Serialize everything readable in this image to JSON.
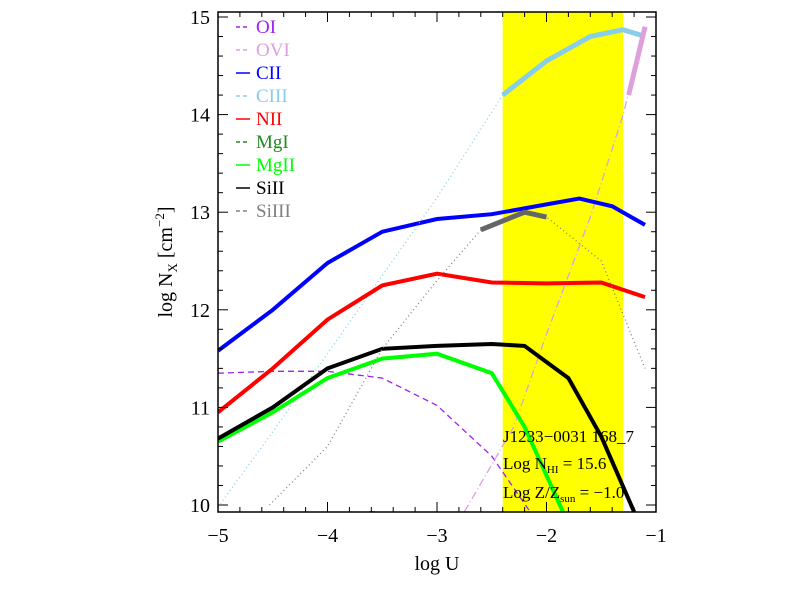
{
  "chart_data": {
    "type": "line",
    "xlabel": "log U",
    "ylabel": "log N_X [cm^-2]",
    "xlim": [
      -5,
      -1
    ],
    "ylim": [
      10,
      15
    ],
    "xticks": [
      "−5",
      "−4",
      "−3",
      "−2",
      "−1"
    ],
    "yticks": [
      "10",
      "11",
      "12",
      "13",
      "14",
      "15"
    ],
    "shaded_band": {
      "x": [
        -2.4,
        -1.3
      ],
      "color": "#ffff00"
    },
    "annotations": [
      "J1233−0031 168_7",
      "Log N",
      "HI",
      "= 15.6",
      "Log Z/Z",
      "sun",
      "= −1.0"
    ],
    "series": [
      {
        "name": "OI",
        "color": "#a020f0",
        "style": "dash",
        "points": [
          [
            -5,
            11.35
          ],
          [
            -4.5,
            11.37
          ],
          [
            -4,
            11.37
          ],
          [
            -3.5,
            11.3
          ],
          [
            -3,
            11.02
          ],
          [
            -2.5,
            10.5
          ],
          [
            -2.15,
            9.93
          ]
        ]
      },
      {
        "name": "OVI",
        "color": "#dda0dd",
        "style": "dashdot",
        "points": [
          [
            -2.75,
            9.93
          ],
          [
            -2.3,
            10.8
          ],
          [
            -2,
            11.75
          ],
          [
            -1.6,
            12.95
          ],
          [
            -1.3,
            14.0
          ],
          [
            -1.1,
            14.9
          ]
        ]
      },
      {
        "name": "CII",
        "color": "#0000ff",
        "style": "solid",
        "points": [
          [
            -5,
            11.58
          ],
          [
            -4.5,
            12.0
          ],
          [
            -4,
            12.48
          ],
          [
            -3.5,
            12.8
          ],
          [
            -3,
            12.93
          ],
          [
            -2.5,
            12.98
          ],
          [
            -2,
            13.08
          ],
          [
            -1.7,
            13.14
          ],
          [
            -1.4,
            13.06
          ],
          [
            -1.1,
            12.87
          ]
        ]
      },
      {
        "name": "CIII",
        "color": "#87ceeb",
        "style": "dot",
        "points": [
          [
            -5,
            9.98
          ],
          [
            -4.5,
            10.75
          ],
          [
            -4,
            11.55
          ],
          [
            -3.5,
            12.35
          ],
          [
            -3,
            13.15
          ],
          [
            -2.4,
            14.2
          ],
          [
            -2,
            14.55
          ],
          [
            -1.6,
            14.8
          ],
          [
            -1.3,
            14.87
          ],
          [
            -1.1,
            14.8
          ]
        ]
      },
      {
        "name": "NII",
        "color": "#ff0000",
        "style": "solid",
        "points": [
          [
            -5,
            10.95
          ],
          [
            -4.5,
            11.4
          ],
          [
            -4,
            11.9
          ],
          [
            -3.5,
            12.25
          ],
          [
            -3,
            12.37
          ],
          [
            -2.5,
            12.28
          ],
          [
            -2,
            12.27
          ],
          [
            -1.5,
            12.28
          ],
          [
            -1.1,
            12.13
          ]
        ]
      },
      {
        "name": "MgI",
        "color": "#228b22",
        "style": "dash",
        "points": [
          [
            -3.62,
            9.93
          ],
          [
            -3.55,
            9.93
          ]
        ]
      },
      {
        "name": "MgII",
        "color": "#00ff00",
        "style": "solid",
        "points": [
          [
            -5,
            10.65
          ],
          [
            -4.5,
            10.95
          ],
          [
            -4,
            11.3
          ],
          [
            -3.5,
            11.5
          ],
          [
            -3,
            11.55
          ],
          [
            -2.5,
            11.35
          ],
          [
            -2.2,
            10.8
          ],
          [
            -1.85,
            9.93
          ]
        ]
      },
      {
        "name": "SiII",
        "color": "#000000",
        "style": "solid",
        "points": [
          [
            -5,
            10.68
          ],
          [
            -4.5,
            11.0
          ],
          [
            -4,
            11.4
          ],
          [
            -3.5,
            11.6
          ],
          [
            -3,
            11.63
          ],
          [
            -2.5,
            11.65
          ],
          [
            -2.2,
            11.63
          ],
          [
            -1.8,
            11.3
          ],
          [
            -1.5,
            10.7
          ],
          [
            -1.2,
            9.93
          ]
        ]
      },
      {
        "name": "SiIII",
        "color": "#808080",
        "style": "dot",
        "points": [
          [
            -4.53,
            10.0
          ],
          [
            -4,
            10.6
          ],
          [
            -3.5,
            11.6
          ],
          [
            -3,
            12.3
          ],
          [
            -2.6,
            12.82
          ],
          [
            -2.2,
            13.0
          ],
          [
            -2.0,
            12.95
          ],
          [
            -1.5,
            12.5
          ],
          [
            -1.1,
            11.4
          ]
        ]
      }
    ]
  }
}
